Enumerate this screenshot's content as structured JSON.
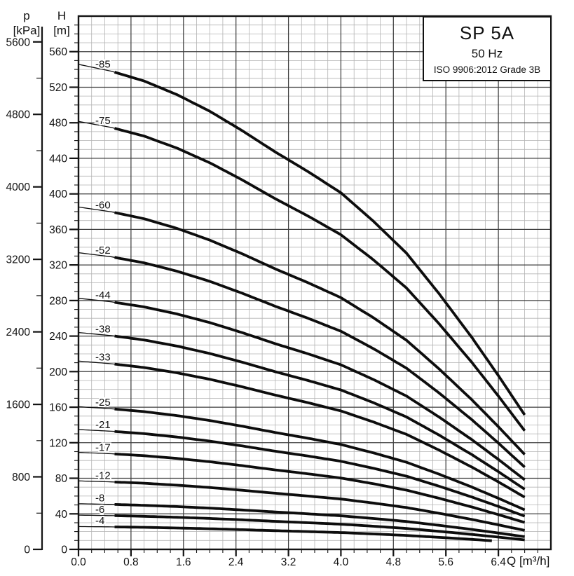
{
  "title_box": {
    "model": "SP 5A",
    "frequency": "50 Hz",
    "standard": "ISO 9906:2012 Grade 3B"
  },
  "colors": {
    "curve": "#0d0d0d",
    "grid_minor": "#b3b3b3",
    "grid_major": "#3f3f3f",
    "frame": "#141414",
    "text": "#111111"
  },
  "chart_data": {
    "type": "line",
    "title": "SP 5A 50 Hz submersible pump performance curves (head vs flow, per number of stages)",
    "x_axis": {
      "label": "Q [m³/h]",
      "range": [
        0,
        7.2
      ],
      "major_tick_values": [
        0,
        0.8,
        1.6,
        2.4,
        3.2,
        4.0,
        4.8,
        5.6,
        6.4
      ],
      "major_tick_labels": [
        "0.0",
        "0.8",
        "1.6",
        "2.4",
        "3.2",
        "4.0",
        "4.8",
        "5.6",
        "6.4"
      ],
      "minor_step": 0.2,
      "grid": true
    },
    "y_axis_head": {
      "name": "H",
      "unit": "[m]",
      "range": [
        0,
        600
      ],
      "major_tick_values": [
        0,
        40,
        80,
        120,
        160,
        200,
        240,
        280,
        320,
        360,
        400,
        440,
        480,
        520,
        560
      ],
      "minor_step": 10,
      "grid": true
    },
    "y_axis_pressure": {
      "name": "p",
      "unit": "[kPa]",
      "major_tick_values": [
        0,
        800,
        1600,
        2400,
        3200,
        4000,
        4800,
        5600
      ],
      "minor_step": 400,
      "kpa_per_m_head": 9.807
    },
    "per_stage_head_curve": {
      "q_m3h": [
        0,
        0.5,
        1.0,
        1.5,
        2.0,
        2.5,
        3.0,
        3.5,
        4.0,
        4.5,
        5.0,
        5.5,
        6.0,
        6.4,
        6.8
      ],
      "head_m_per_stage": [
        6.42,
        6.33,
        6.2,
        6.02,
        5.8,
        5.54,
        5.26,
        5.0,
        4.72,
        4.34,
        3.92,
        3.38,
        2.8,
        2.3,
        1.78
      ]
    },
    "duty_range_thick_from_q": 0.55,
    "series": [
      {
        "label": "-85",
        "stages": 85,
        "q_max": 6.8
      },
      {
        "label": "-75",
        "stages": 75,
        "q_max": 6.8
      },
      {
        "label": "-60",
        "stages": 60,
        "q_max": 6.8
      },
      {
        "label": "-52",
        "stages": 52,
        "q_max": 6.8
      },
      {
        "label": "-44",
        "stages": 44,
        "q_max": 6.8
      },
      {
        "label": "-38",
        "stages": 38,
        "q_max": 6.8
      },
      {
        "label": "-33",
        "stages": 33,
        "q_max": 6.8
      },
      {
        "label": "-25",
        "stages": 25,
        "q_max": 6.8
      },
      {
        "label": "-21",
        "stages": 21,
        "q_max": 6.8
      },
      {
        "label": "-17",
        "stages": 17,
        "q_max": 6.8
      },
      {
        "label": "-12",
        "stages": 12,
        "q_max": 6.8
      },
      {
        "label": "-8",
        "stages": 8,
        "q_max": 6.8
      },
      {
        "label": "-6",
        "stages": 6,
        "q_max": 6.8
      },
      {
        "label": "-4",
        "stages": 4,
        "q_max": 6.3
      }
    ],
    "legend_position": "none",
    "curve_label_q": 0.28
  }
}
